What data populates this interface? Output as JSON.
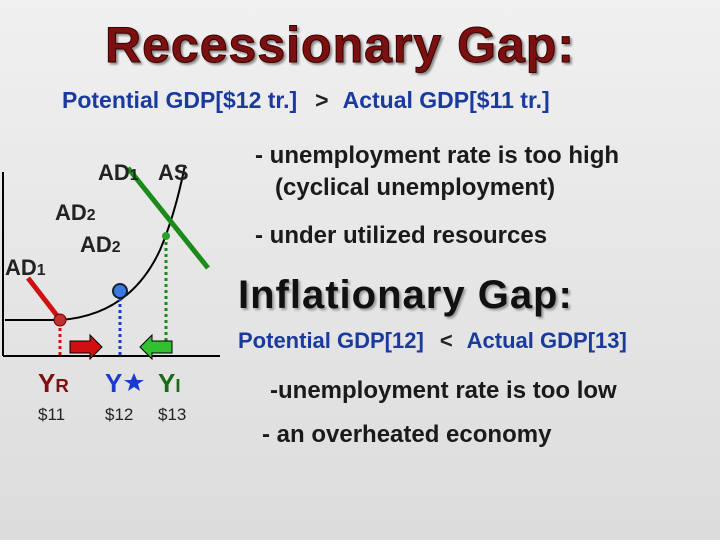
{
  "header": {
    "title": "Recessionary Gap:",
    "subtitle": {
      "left": "Potential GDP[$12 tr.]",
      "sign": ">",
      "right": "Actual GDP[$11 tr.]"
    }
  },
  "recessionary_points": [
    "- unemployment rate is too high",
    "(cyclical unemployment)",
    "- under utilized resources"
  ],
  "inflationary": {
    "title": "Inflationary  Gap:",
    "comparison": {
      "left": "Potential GDP[12]",
      "sign": "<",
      "right": "Actual GDP[13]"
    },
    "points": [
      "-unemployment rate is too low",
      "- an overheated economy"
    ]
  },
  "graph": {
    "curve_labels": [
      {
        "base": "AD",
        "sub": "1"
      },
      {
        "base": "AS",
        "sub": ""
      },
      {
        "base": "AD",
        "sub": "2"
      },
      {
        "base": "AD",
        "sub": "2"
      },
      {
        "base": "AD",
        "sub": "1"
      }
    ],
    "output_labels": [
      {
        "base": "Y",
        "sub": "R",
        "value": "$11"
      },
      {
        "base": "Y",
        "sub": "",
        "value": "$12"
      },
      {
        "base": "Y",
        "sub": "I",
        "value": "$13"
      }
    ]
  }
}
